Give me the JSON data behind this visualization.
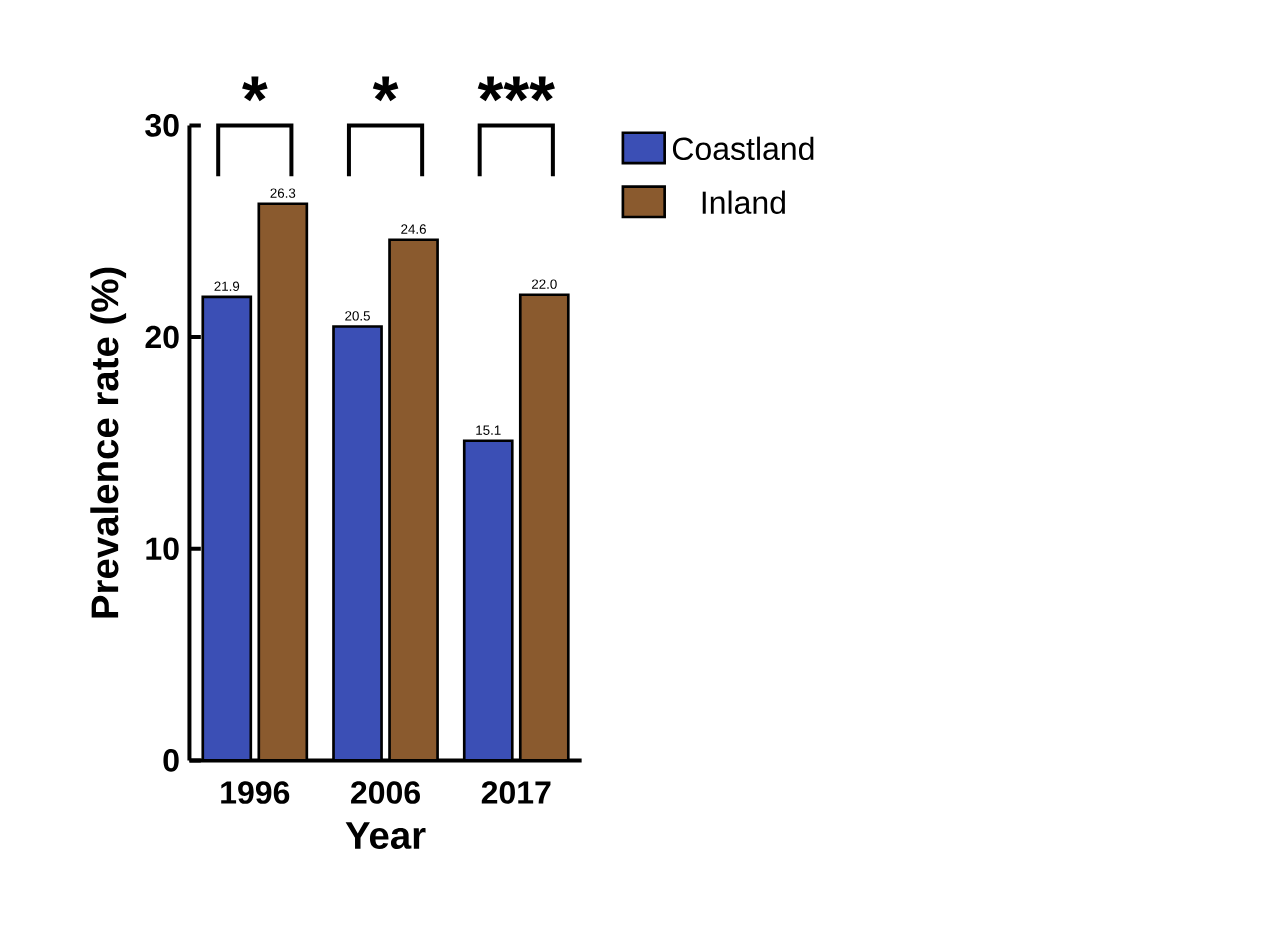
{
  "chart_data": {
    "type": "bar",
    "xlabel": "Year",
    "ylabel": "Prevalence rate (%)",
    "categories": [
      "1996",
      "2006",
      "2017"
    ],
    "series": [
      {
        "name": "Coastland",
        "color": "#3b4fb5",
        "values": [
          21.9,
          20.5,
          15.1
        ],
        "value_labels": [
          "21.9",
          "20.5",
          "15.1"
        ]
      },
      {
        "name": "Inland",
        "color": "#8a5a2e",
        "values": [
          26.3,
          24.6,
          22.0
        ],
        "value_labels": [
          "26.3",
          "24.6",
          "22.0"
        ]
      }
    ],
    "ylim": [
      0,
      30
    ],
    "yticks": [
      0,
      10,
      20,
      30
    ],
    "legend": "right",
    "grid": false,
    "annotations": [
      "*",
      "*",
      "***"
    ]
  }
}
